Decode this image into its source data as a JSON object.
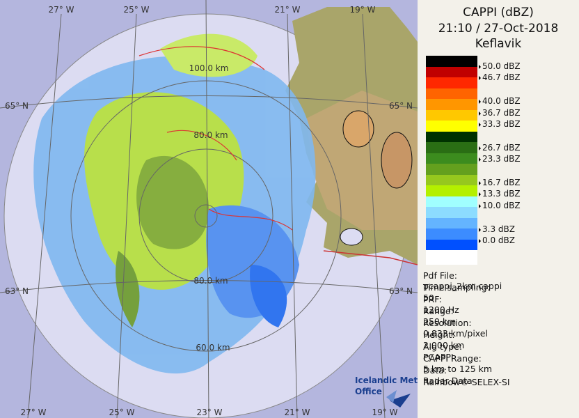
{
  "header": {
    "title": "CAPPI (dBZ)",
    "time": "21:10 / 27-Oct-2018",
    "station": "Keflavik"
  },
  "legend": {
    "labels": [
      "50.0 dBZ",
      "46.7 dBZ",
      "40.0 dBZ",
      "36.7 dBZ",
      "33.3 dBZ",
      "26.7 dBZ",
      "23.3 dBZ",
      "16.7 dBZ",
      "13.3 dBZ",
      "10.0 dBZ",
      "3.3 dBZ",
      "0.0 dBZ"
    ]
  },
  "info": {
    "rows": [
      [
        "Pdf File:",
        "pcappi_2km.cappi"
      ],
      [
        "Time sampling:",
        "50"
      ],
      [
        "PRF:",
        "1200 Hz"
      ],
      [
        "Range:",
        "250 km"
      ],
      [
        "Resolution:",
        "0.833 km/pixel"
      ],
      [
        "Height:",
        "2.000 km"
      ],
      [
        "Alg type:",
        "PCAPPI"
      ],
      [
        "CAPPI Range:",
        "5 km to 125 km"
      ],
      [
        "Data:",
        "Radar Data"
      ]
    ],
    "footer": "Rainbow® SELEX-SI"
  },
  "map": {
    "top_lon": [
      "27° W",
      "25° W",
      "21° W",
      "19° W"
    ],
    "bottom_lon": [
      "27° W",
      "25° W",
      "23° W",
      "21° W",
      "19° W"
    ],
    "lat_left": [
      "65° N",
      "63° N"
    ],
    "lat_right": [
      "65° N",
      "63° N"
    ],
    "rings": [
      "100.0 km",
      "80.0 km",
      "80.0 km",
      "60.0 km"
    ],
    "logo": [
      "Icelandic Met",
      "Office"
    ]
  }
}
